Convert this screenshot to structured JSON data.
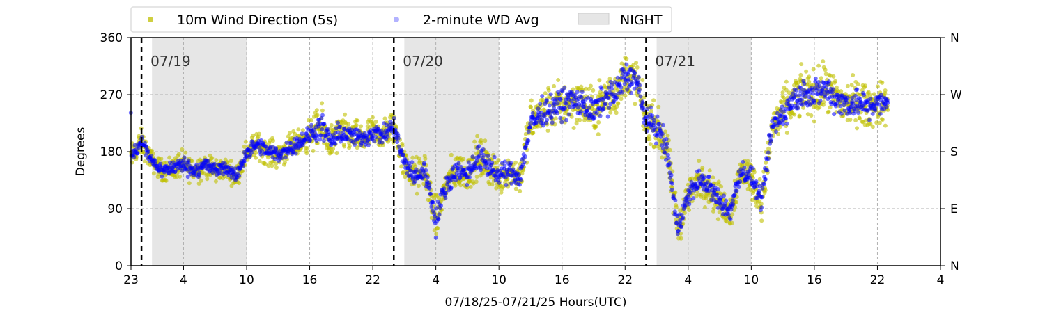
{
  "chart_data": {
    "type": "scatter",
    "xlabel": "07/18/25-07/21/25  Hours(UTC)",
    "ylabel": "Degrees",
    "x_range_hours": [
      0,
      77
    ],
    "x_tick_hours": [
      0,
      5,
      11,
      17,
      23,
      29,
      35,
      41,
      47,
      53,
      59,
      65,
      71,
      77
    ],
    "x_tick_labels": [
      "23",
      "4",
      "10",
      "16",
      "22",
      "4",
      "10",
      "16",
      "22",
      "4",
      "10",
      "16",
      "22",
      "4"
    ],
    "ylim": [
      0,
      360
    ],
    "y_ticks": [
      0,
      90,
      180,
      270,
      360
    ],
    "y_tick_labels": [
      "0",
      "90",
      "180",
      "270",
      "360"
    ],
    "y2_ticks": [
      0,
      90,
      180,
      270,
      360
    ],
    "y2_tick_labels": [
      "N",
      "E",
      "S",
      "W",
      "N"
    ],
    "grid": true,
    "legend_position": "top",
    "legend": [
      {
        "label": "10m Wind Direction (5s)",
        "color": "#bfbf00",
        "marker": "circle"
      },
      {
        "label": "2-minute WD Avg",
        "color": "#0000ff",
        "marker": "circle"
      },
      {
        "label": "NIGHT",
        "color": "#e6e6e6",
        "marker": "rect"
      }
    ],
    "night_periods_hours": [
      [
        2,
        11
      ],
      [
        26,
        35
      ],
      [
        50,
        59
      ]
    ],
    "day_boundaries": [
      {
        "hour": 1,
        "label": "07/19"
      },
      {
        "hour": 25,
        "label": "07/20"
      },
      {
        "hour": 49,
        "label": "07/21"
      }
    ],
    "series": [
      {
        "name": "10m Wind Direction (5s)",
        "color": "#bfbf00",
        "x_hours": [
          0,
          1,
          2,
          3,
          4,
          5,
          6,
          7,
          8,
          9,
          10,
          11,
          12,
          13,
          14,
          15,
          16,
          17,
          18,
          19,
          20,
          21,
          22,
          23,
          24,
          25,
          26,
          27,
          28,
          29,
          30,
          31,
          32,
          33,
          34,
          35,
          36,
          37,
          38,
          39,
          40,
          41,
          42,
          43,
          44,
          45,
          46,
          47,
          48,
          49,
          50,
          51,
          52,
          53,
          54,
          55,
          56,
          57,
          58,
          59,
          60,
          61,
          62,
          63,
          64,
          65,
          66,
          67,
          68,
          69,
          70,
          71,
          72
        ],
        "y_center": [
          170,
          195,
          165,
          150,
          155,
          160,
          150,
          160,
          150,
          155,
          140,
          180,
          190,
          180,
          175,
          185,
          195,
          205,
          220,
          195,
          210,
          205,
          200,
          210,
          205,
          220,
          160,
          140,
          150,
          70,
          130,
          150,
          145,
          170,
          160,
          140,
          150,
          140,
          225,
          240,
          250,
          255,
          260,
          255,
          240,
          265,
          270,
          300,
          295,
          230,
          220,
          180,
          60,
          110,
          135,
          125,
          100,
          85,
          150,
          140,
          100,
          220,
          240,
          260,
          275,
          270,
          280,
          265,
          255,
          260,
          250,
          255,
          255
        ],
        "y_spread": [
          25,
          25,
          20,
          20,
          25,
          25,
          25,
          25,
          25,
          20,
          20,
          25,
          25,
          25,
          25,
          25,
          25,
          30,
          40,
          35,
          35,
          30,
          30,
          30,
          30,
          35,
          30,
          35,
          35,
          40,
          35,
          35,
          35,
          40,
          40,
          35,
          35,
          35,
          40,
          40,
          45,
          45,
          45,
          45,
          40,
          45,
          45,
          45,
          45,
          40,
          40,
          40,
          40,
          35,
          35,
          35,
          35,
          35,
          35,
          35,
          35,
          40,
          45,
          45,
          45,
          45,
          45,
          45,
          45,
          45,
          40,
          40,
          40
        ]
      },
      {
        "name": "2-minute WD Avg",
        "color": "#0000ff",
        "x_hours": [
          0,
          1,
          2,
          3,
          4,
          5,
          6,
          7,
          8,
          9,
          10,
          11,
          12,
          13,
          14,
          15,
          16,
          17,
          18,
          19,
          20,
          21,
          22,
          23,
          24,
          25,
          26,
          27,
          28,
          29,
          30,
          31,
          32,
          33,
          34,
          35,
          36,
          37,
          38,
          39,
          40,
          41,
          42,
          43,
          44,
          45,
          46,
          47,
          48,
          49,
          50,
          51,
          52,
          53,
          54,
          55,
          56,
          57,
          58,
          59,
          60,
          61,
          62,
          63,
          64,
          65,
          66,
          67,
          68,
          69,
          70,
          71,
          72
        ],
        "y_center": [
          170,
          195,
          165,
          150,
          155,
          160,
          150,
          160,
          150,
          155,
          140,
          180,
          190,
          180,
          175,
          185,
          195,
          205,
          220,
          195,
          210,
          205,
          200,
          210,
          205,
          220,
          160,
          140,
          150,
          70,
          130,
          150,
          145,
          170,
          160,
          140,
          150,
          140,
          225,
          240,
          250,
          255,
          260,
          255,
          240,
          265,
          270,
          300,
          295,
          230,
          220,
          180,
          60,
          110,
          135,
          125,
          100,
          85,
          150,
          140,
          100,
          220,
          240,
          260,
          275,
          270,
          280,
          265,
          255,
          260,
          250,
          255,
          255
        ],
        "y_spread": [
          15,
          15,
          12,
          12,
          15,
          15,
          15,
          15,
          15,
          12,
          12,
          15,
          15,
          15,
          15,
          15,
          15,
          18,
          25,
          20,
          20,
          18,
          18,
          18,
          18,
          20,
          18,
          20,
          20,
          25,
          20,
          20,
          20,
          25,
          25,
          20,
          20,
          20,
          25,
          25,
          28,
          28,
          28,
          28,
          25,
          28,
          28,
          28,
          28,
          25,
          25,
          25,
          25,
          20,
          20,
          20,
          20,
          20,
          20,
          20,
          20,
          25,
          28,
          28,
          28,
          28,
          28,
          28,
          28,
          28,
          25,
          25,
          25
        ]
      }
    ]
  }
}
